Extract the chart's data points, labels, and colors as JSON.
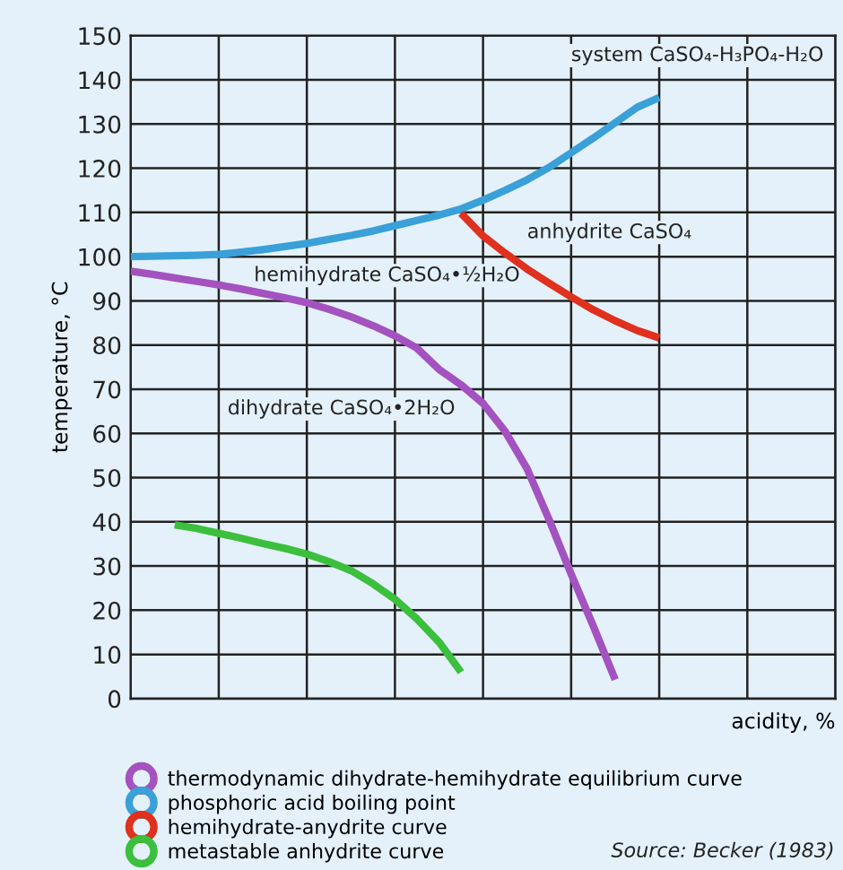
{
  "chart_data": {
    "type": "line",
    "ylabel": "temperature, °C",
    "xlabel": "acidity, %",
    "categories": [
      null,
      null,
      null,
      null,
      null,
      null,
      null,
      null,
      null,
      null,
      null,
      null,
      null,
      null,
      null,
      null,
      null,
      null,
      null,
      null,
      null,
      null,
      null,
      null,
      null,
      null,
      null,
      null,
      null,
      null,
      null,
      null,
      null
    ],
    "ylim": [
      0,
      150
    ],
    "yticks": [
      0,
      10,
      20,
      30,
      40,
      50,
      60,
      70,
      80,
      90,
      100,
      110,
      120,
      130,
      140,
      150
    ],
    "grid": true,
    "legend": "bottom",
    "marker": "none",
    "line_style": "solid",
    "series": [
      {
        "name": "thermodynamic dihydrate-hemihydrate equilibrium curve",
        "color": "#a352c0",
        "values": [
          96.7,
          96,
          95.2,
          94.4,
          93.6,
          92.7,
          91.7,
          90.7,
          89.6,
          88.1,
          86.4,
          84.4,
          82.1,
          79.3,
          74.5,
          71,
          66.8,
          60.5,
          52,
          40.5,
          28.2,
          16.5,
          4.3,
          null,
          null,
          null,
          null,
          null,
          null,
          null,
          null,
          null,
          null
        ]
      },
      {
        "name": "phosphoric acid boiling point",
        "color": "#3aa0d8",
        "values": [
          100,
          100.1,
          100.2,
          100.3,
          100.5,
          101,
          101.6,
          102.3,
          103,
          103.9,
          104.8,
          105.8,
          107,
          108.2,
          109.4,
          110.8,
          112.8,
          115,
          117.4,
          120.2,
          123.5,
          126.8,
          130.3,
          133.8,
          136,
          null,
          null,
          null,
          null,
          null,
          null,
          null,
          null
        ]
      },
      {
        "name": "hemihydrate-anydrite curve",
        "color": "#e0301e",
        "values": [
          null,
          null,
          null,
          null,
          null,
          null,
          null,
          null,
          null,
          null,
          null,
          null,
          null,
          null,
          null,
          109.8,
          104.7,
          100.8,
          97.2,
          94,
          90.9,
          88,
          85.5,
          83.3,
          81.6,
          null,
          null,
          null,
          null,
          null,
          null,
          null,
          null
        ]
      },
      {
        "name": "metastable anhydrite curve",
        "color": "#3cbf3c",
        "values": [
          null,
          null,
          39.3,
          38.5,
          37.4,
          36.3,
          35.1,
          34,
          32.7,
          31,
          29,
          26,
          22.5,
          18,
          12.8,
          6,
          null,
          null,
          null,
          null,
          null,
          null,
          null,
          null,
          null,
          null,
          null,
          null,
          null,
          null,
          null,
          null,
          null
        ]
      }
    ],
    "annotations": [
      "system CaSO₄-H₃PO₄-H₂O",
      "anhydrite CaSO₄",
      "hemihydrate CaSO₄•½H₂O",
      "dihydrate CaSO₄•2H₂O",
      "Source: Becker (1983)"
    ]
  }
}
